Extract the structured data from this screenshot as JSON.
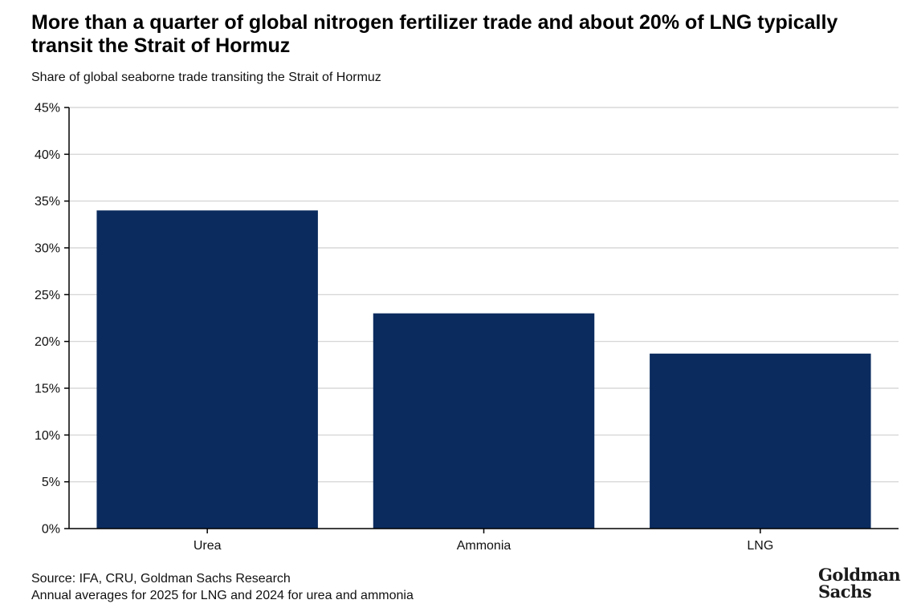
{
  "title": "More than a quarter of global nitrogen fertilizer trade and about 20% of LNG typically transit the Strait of Hormuz",
  "subtitle": "Share of global seaborne trade transiting the Strait of Hormuz",
  "footer": {
    "source": "Source: IFA, CRU, Goldman Sachs Research",
    "note": "Annual averages for 2025 for LNG and 2024 for urea and ammonia"
  },
  "logo": {
    "line1": "Goldman",
    "line2": "Sachs"
  },
  "colors": {
    "bar": "#0b2b5e",
    "grid": "#d0d0d0",
    "axis": "#000000"
  },
  "chart_data": {
    "type": "bar",
    "categories": [
      "Urea",
      "Ammonia",
      "LNG"
    ],
    "values": [
      34,
      23,
      18.7
    ],
    "unit": "%",
    "ylim": [
      0,
      45
    ],
    "yticks": [
      0,
      5,
      10,
      15,
      20,
      25,
      30,
      35,
      40,
      45
    ],
    "ytick_labels": [
      "0%",
      "5%",
      "10%",
      "15%",
      "20%",
      "25%",
      "30%",
      "35%",
      "40%",
      "45%"
    ],
    "grid": true,
    "legend": "none"
  }
}
